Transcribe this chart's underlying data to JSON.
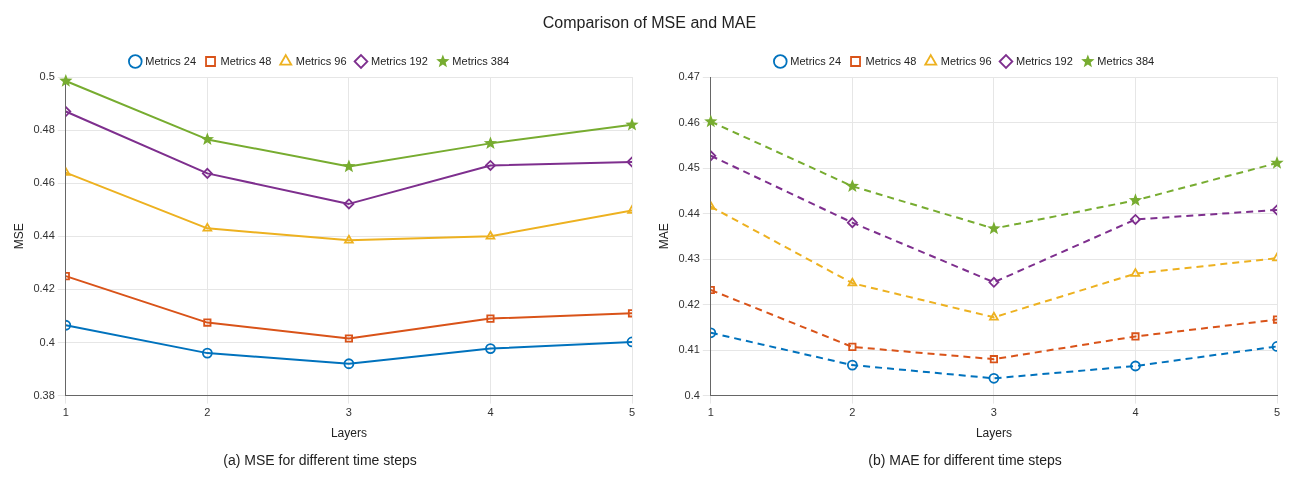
{
  "chart_data": [
    {
      "type": "line",
      "title": "Comparison of MSE and MAE",
      "subtitle": "(a) MSE for different time steps",
      "xlabel": "Layers",
      "ylabel": "MSE",
      "x": [
        1,
        2,
        3,
        4,
        5
      ],
      "xlim": [
        1,
        5
      ],
      "xticks": [
        1,
        2,
        3,
        4,
        5
      ],
      "ylim": [
        0.38,
        0.5
      ],
      "yticks": [
        0.38,
        0.4,
        0.42,
        0.44,
        0.46,
        0.48,
        0.5
      ],
      "grid": true,
      "legend": "top",
      "line_style": "solid",
      "series": [
        {
          "name": "Metrics 24",
          "color": "#0072bd",
          "marker": "circle",
          "values": [
            0.4065,
            0.396,
            0.392,
            0.3977,
            0.4002
          ]
        },
        {
          "name": "Metrics 48",
          "color": "#d95319",
          "marker": "square",
          "values": [
            0.425,
            0.4075,
            0.4015,
            0.409,
            0.411
          ]
        },
        {
          "name": "Metrics 96",
          "color": "#edb120",
          "marker": "triangle",
          "values": [
            0.464,
            0.443,
            0.4385,
            0.44,
            0.4497
          ]
        },
        {
          "name": "Metrics 192",
          "color": "#7e2f8e",
          "marker": "diamond",
          "values": [
            0.487,
            0.4637,
            0.4522,
            0.4667,
            0.468
          ]
        },
        {
          "name": "Metrics 384",
          "color": "#77ac30",
          "marker": "star",
          "values": [
            0.4985,
            0.4765,
            0.4663,
            0.475,
            0.482
          ]
        }
      ]
    },
    {
      "type": "line",
      "subtitle": "(b) MAE for different time steps",
      "xlabel": "Layers",
      "ylabel": "MAE",
      "x": [
        1,
        2,
        3,
        4,
        5
      ],
      "xlim": [
        1,
        5
      ],
      "xticks": [
        1,
        2,
        3,
        4,
        5
      ],
      "ylim": [
        0.4,
        0.47
      ],
      "yticks": [
        0.4,
        0.41,
        0.42,
        0.43,
        0.44,
        0.45,
        0.46,
        0.47
      ],
      "grid": true,
      "legend": "top",
      "line_style": "dashed",
      "series": [
        {
          "name": "Metrics 24",
          "color": "#0072bd",
          "marker": "circle",
          "values": [
            0.4138,
            0.4067,
            0.4038,
            0.4065,
            0.4108
          ]
        },
        {
          "name": "Metrics 48",
          "color": "#d95319",
          "marker": "square",
          "values": [
            0.4232,
            0.4107,
            0.408,
            0.413,
            0.4167
          ]
        },
        {
          "name": "Metrics 96",
          "color": "#edb120",
          "marker": "triangle",
          "values": [
            0.4415,
            0.4247,
            0.4172,
            0.4268,
            0.4302
          ]
        },
        {
          "name": "Metrics 192",
          "color": "#7e2f8e",
          "marker": "diamond",
          "values": [
            0.4527,
            0.438,
            0.4249,
            0.4387,
            0.4408
          ]
        },
        {
          "name": "Metrics 384",
          "color": "#77ac30",
          "marker": "star",
          "values": [
            0.4602,
            0.446,
            0.4367,
            0.4429,
            0.4511
          ]
        }
      ]
    }
  ]
}
